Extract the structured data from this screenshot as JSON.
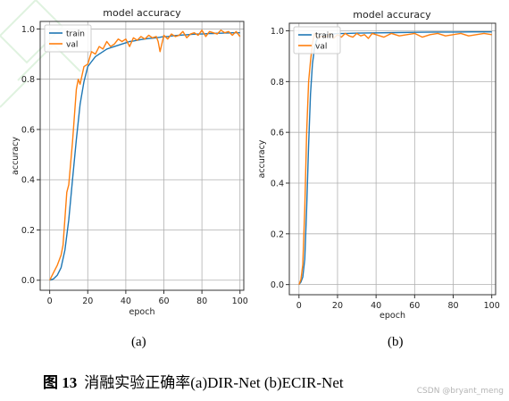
{
  "chart_data": [
    {
      "type": "line",
      "title": "model accuracy",
      "xlabel": "epoch",
      "ylabel": "accuracy",
      "xlim": [
        -5,
        102
      ],
      "ylim": [
        -0.04,
        1.03
      ],
      "xticks": [
        0,
        20,
        40,
        60,
        80,
        100
      ],
      "yticks": [
        0.0,
        0.2,
        0.4,
        0.6,
        0.8,
        1.0
      ],
      "ytick_labels": [
        "0.0",
        "0.2",
        "0.4",
        "0.6",
        "0.8",
        "1.0"
      ],
      "xtick_labels": [
        "0",
        "20",
        "40",
        "60",
        "80",
        "100"
      ],
      "grid": true,
      "legend": "upper-left",
      "series": [
        {
          "name": "train",
          "color": "#1f77b4",
          "x": [
            0,
            2,
            4,
            6,
            8,
            10,
            12,
            14,
            16,
            18,
            20,
            22,
            24,
            26,
            28,
            30,
            32,
            34,
            36,
            38,
            40,
            42,
            44,
            46,
            48,
            50,
            52,
            54,
            56,
            58,
            60,
            62,
            64,
            66,
            68,
            70,
            72,
            74,
            76,
            78,
            80,
            82,
            84,
            86,
            88,
            90,
            92,
            94,
            96,
            98,
            100
          ],
          "y": [
            0.0,
            0.005,
            0.02,
            0.05,
            0.12,
            0.24,
            0.4,
            0.56,
            0.7,
            0.79,
            0.85,
            0.87,
            0.89,
            0.9,
            0.91,
            0.92,
            0.925,
            0.93,
            0.935,
            0.94,
            0.945,
            0.95,
            0.952,
            0.955,
            0.958,
            0.96,
            0.962,
            0.963,
            0.965,
            0.967,
            0.97,
            0.97,
            0.972,
            0.974,
            0.975,
            0.976,
            0.977,
            0.978,
            0.979,
            0.98,
            0.98,
            0.981,
            0.982,
            0.982,
            0.983,
            0.983,
            0.984,
            0.984,
            0.985,
            0.985,
            0.985
          ]
        },
        {
          "name": "val",
          "color": "#ff7f0e",
          "x": [
            0,
            2,
            4,
            6,
            7,
            9,
            10,
            12,
            14,
            15,
            16,
            18,
            20,
            22,
            24,
            26,
            28,
            30,
            32,
            34,
            36,
            38,
            40,
            42,
            44,
            46,
            48,
            50,
            52,
            54,
            56,
            57,
            58,
            60,
            62,
            64,
            66,
            68,
            70,
            72,
            74,
            76,
            78,
            80,
            82,
            84,
            86,
            88,
            90,
            92,
            94,
            96,
            98,
            100
          ],
          "y": [
            0.0,
            0.03,
            0.06,
            0.1,
            0.14,
            0.35,
            0.38,
            0.55,
            0.76,
            0.8,
            0.78,
            0.85,
            0.86,
            0.91,
            0.9,
            0.93,
            0.92,
            0.95,
            0.93,
            0.94,
            0.96,
            0.95,
            0.96,
            0.93,
            0.965,
            0.955,
            0.97,
            0.96,
            0.975,
            0.965,
            0.97,
            0.95,
            0.91,
            0.975,
            0.96,
            0.98,
            0.97,
            0.975,
            0.99,
            0.965,
            0.98,
            0.985,
            0.975,
            0.995,
            0.97,
            0.99,
            0.985,
            0.98,
            0.995,
            0.985,
            0.99,
            0.975,
            0.99,
            0.97
          ]
        }
      ]
    },
    {
      "type": "line",
      "title": "model accuracy",
      "xlabel": "epoch",
      "ylabel": "accuracy",
      "xlim": [
        -5,
        102
      ],
      "ylim": [
        -0.04,
        1.03
      ],
      "xticks": [
        0,
        20,
        40,
        60,
        80,
        100
      ],
      "yticks": [
        0.0,
        0.2,
        0.4,
        0.6,
        0.8,
        1.0
      ],
      "ytick_labels": [
        "0.0",
        "0.2",
        "0.4",
        "0.6",
        "0.8",
        "1.0"
      ],
      "xtick_labels": [
        "0",
        "20",
        "40",
        "60",
        "80",
        "100"
      ],
      "grid": true,
      "legend": "upper-left",
      "series": [
        {
          "name": "train",
          "color": "#1f77b4",
          "x": [
            0,
            1,
            2,
            3,
            4,
            5,
            6,
            7,
            8,
            9,
            10,
            12,
            14,
            16,
            18,
            20,
            25,
            30,
            40,
            50,
            60,
            70,
            80,
            90,
            100
          ],
          "y": [
            0.0,
            0.01,
            0.03,
            0.1,
            0.3,
            0.55,
            0.75,
            0.87,
            0.93,
            0.96,
            0.975,
            0.982,
            0.985,
            0.987,
            0.988,
            0.989,
            0.99,
            0.991,
            0.992,
            0.993,
            0.994,
            0.995,
            0.995,
            0.996,
            0.996
          ]
        },
        {
          "name": "val",
          "color": "#ff7f0e",
          "x": [
            0,
            1,
            2,
            3,
            4,
            5,
            6,
            7,
            8,
            10,
            12,
            14,
            16,
            18,
            20,
            22,
            24,
            26,
            28,
            30,
            32,
            34,
            36,
            38,
            40,
            44,
            48,
            52,
            56,
            60,
            64,
            68,
            72,
            76,
            80,
            84,
            88,
            92,
            96,
            100
          ],
          "y": [
            0.0,
            0.02,
            0.08,
            0.3,
            0.6,
            0.8,
            0.88,
            0.95,
            0.99,
            0.97,
            0.98,
            0.975,
            0.99,
            0.97,
            0.985,
            0.975,
            0.99,
            0.98,
            0.975,
            0.99,
            0.98,
            0.985,
            0.97,
            0.99,
            0.985,
            0.975,
            0.99,
            0.98,
            0.985,
            0.99,
            0.975,
            0.985,
            0.99,
            0.98,
            0.985,
            0.99,
            0.98,
            0.985,
            0.99,
            0.985
          ]
        }
      ]
    }
  ],
  "panel_labels": [
    "(a)",
    "(b)"
  ],
  "caption": {
    "fig_num": "图 13",
    "text": "消融实验正确率(a)DIR-Net (b)ECIR-Net"
  },
  "watermark": "CSDN @bryant_meng"
}
